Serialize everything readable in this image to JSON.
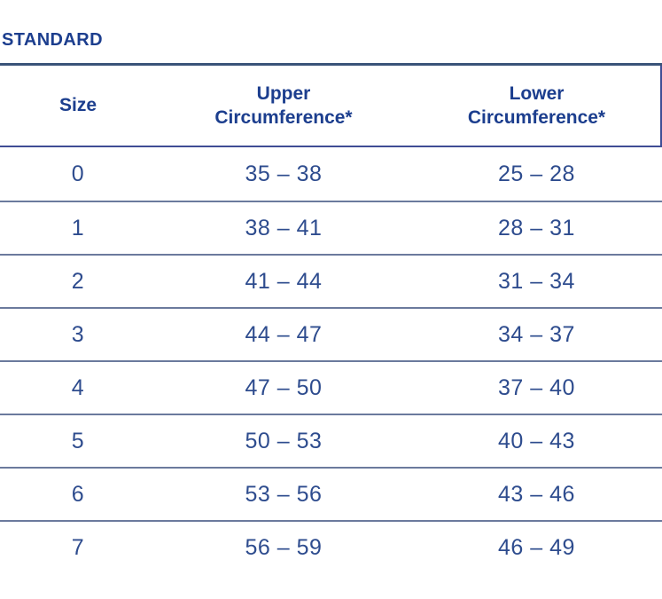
{
  "title": "STANDARD",
  "colors": {
    "header_text": "#1c3e8e",
    "body_text": "#2e4c8e",
    "title_rule": "#3a5379",
    "header_rule": "#3f4d95",
    "row_rule": "#6b7a9d",
    "background": "#ffffff"
  },
  "chart_data": {
    "type": "table",
    "title": "STANDARD",
    "columns": [
      "Size",
      "Upper Circumference*",
      "Lower Circumference*"
    ],
    "rows": [
      [
        "0",
        "35 – 38",
        "25 – 28"
      ],
      [
        "1",
        "38 – 41",
        "28 – 31"
      ],
      [
        "2",
        "41 – 44",
        "31 – 34"
      ],
      [
        "3",
        "44 – 47",
        "34 – 37"
      ],
      [
        "4",
        "47 – 50",
        "37 – 40"
      ],
      [
        "5",
        "50 – 53",
        "40 – 43"
      ],
      [
        "6",
        "53 – 56",
        "43 – 46"
      ],
      [
        "7",
        "56 – 59",
        "46 – 49"
      ]
    ]
  },
  "table": {
    "headers": {
      "size": "Size",
      "upper": "Upper\nCircumference*",
      "lower": "Lower\nCircumference*"
    },
    "rows": [
      {
        "size": "0",
        "upper": "35 – 38",
        "lower": "25 – 28"
      },
      {
        "size": "1",
        "upper": "38 – 41",
        "lower": "28 – 31"
      },
      {
        "size": "2",
        "upper": "41 – 44",
        "lower": "31 – 34"
      },
      {
        "size": "3",
        "upper": "44 – 47",
        "lower": "34 – 37"
      },
      {
        "size": "4",
        "upper": "47 – 50",
        "lower": "37 – 40"
      },
      {
        "size": "5",
        "upper": "50 – 53",
        "lower": "40 – 43"
      },
      {
        "size": "6",
        "upper": "53 – 56",
        "lower": "43 – 46"
      },
      {
        "size": "7",
        "upper": "56 – 59",
        "lower": "46 – 49"
      }
    ]
  }
}
